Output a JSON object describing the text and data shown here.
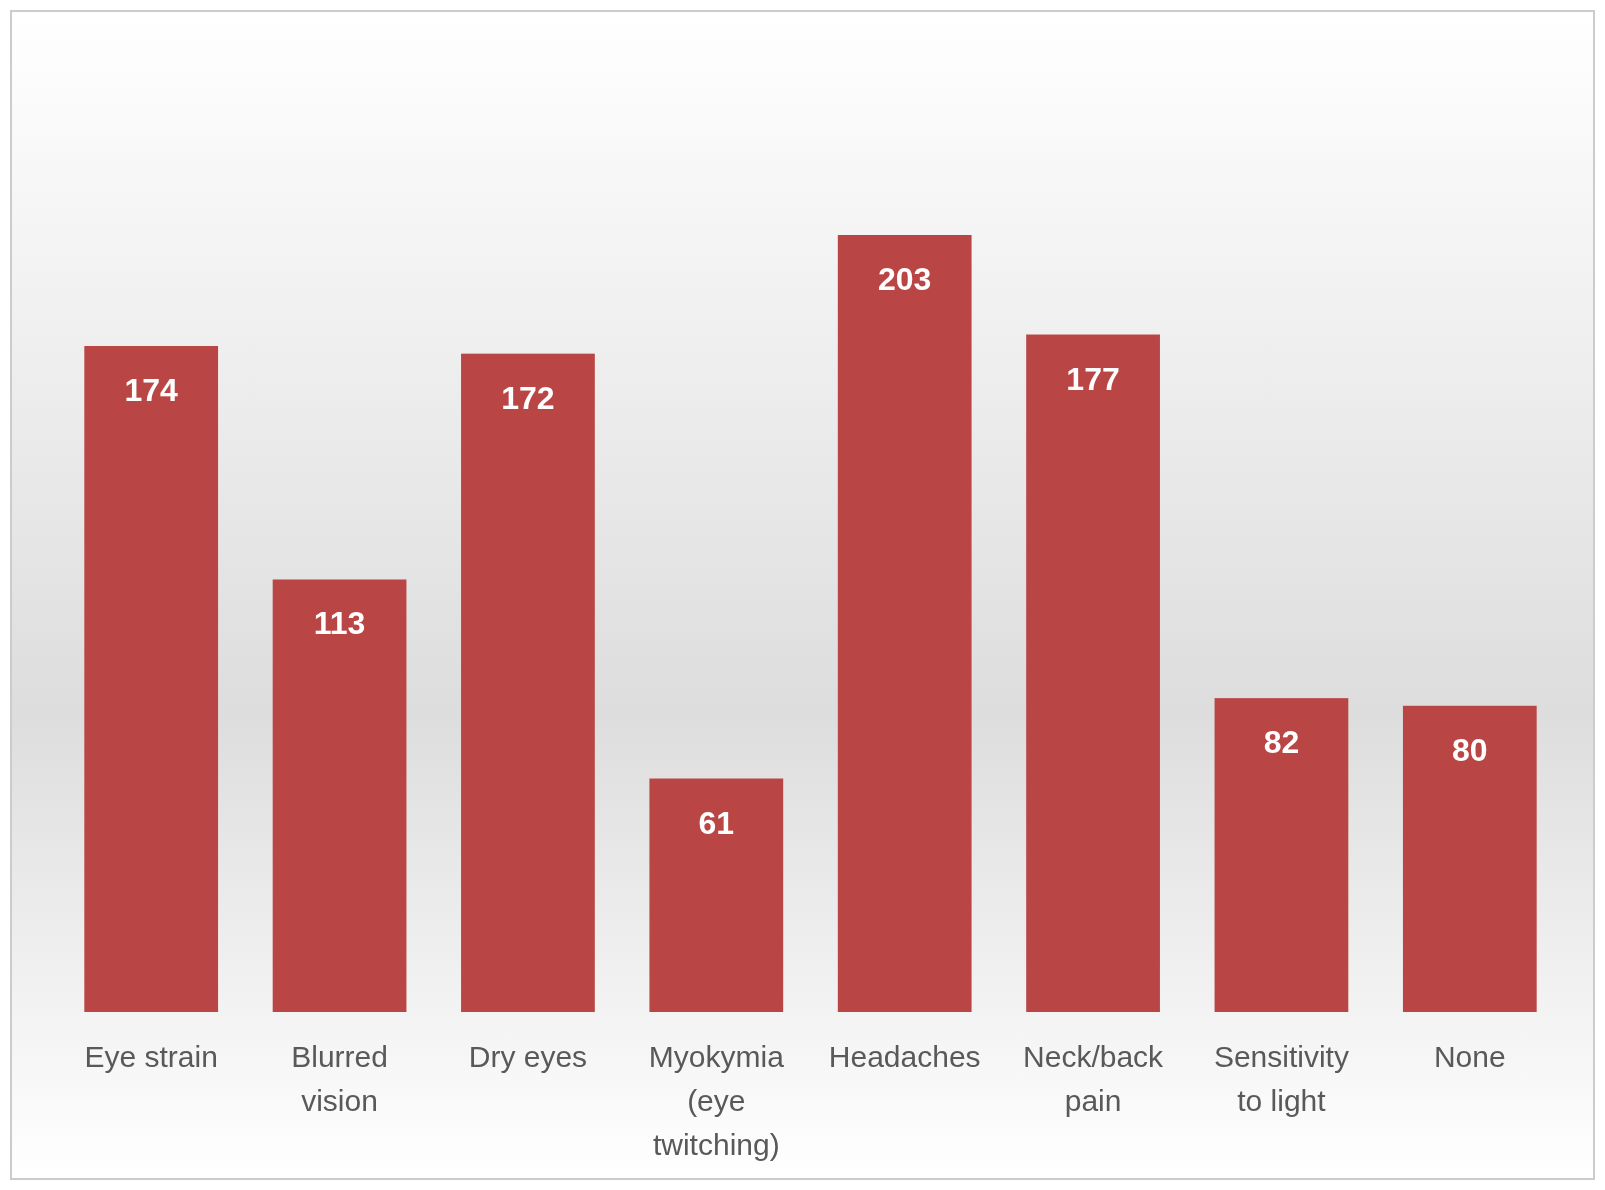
{
  "chart_data": {
    "type": "bar",
    "categories": [
      "Eye strain",
      "Blurred vision",
      "Dry eyes",
      "Myokymia (eye twitching)",
      "Headaches",
      "Neck/back pain",
      "Sensitivity to light",
      "None"
    ],
    "values": [
      174,
      113,
      172,
      61,
      203,
      177,
      82,
      80
    ],
    "color": "#b94645",
    "data_labels": true
  }
}
